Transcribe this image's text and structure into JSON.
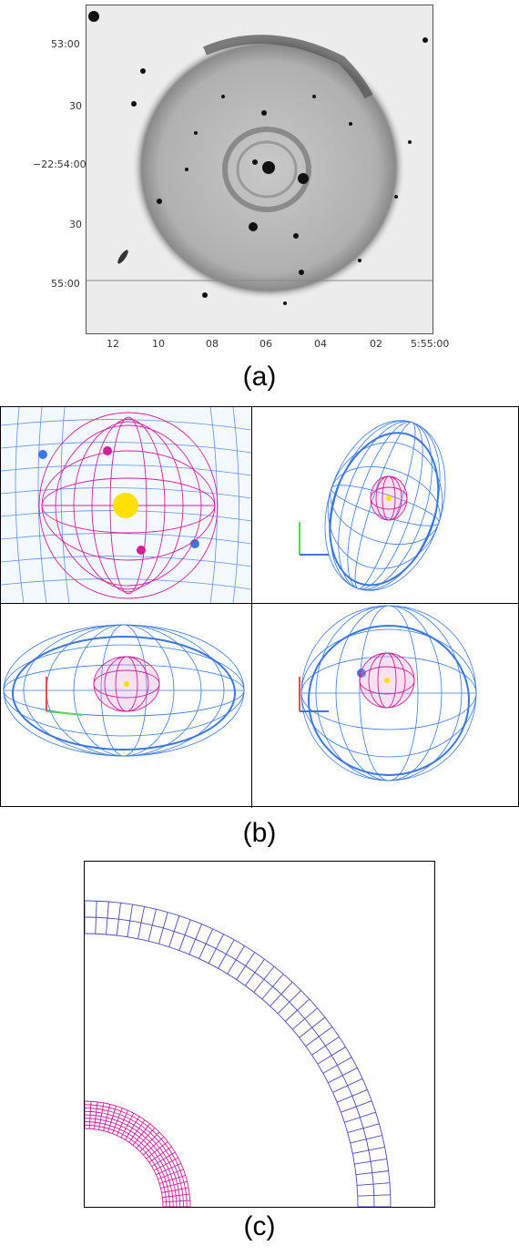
{
  "figure": {
    "panel_a": {
      "y_ticks": [
        "53:00",
        "30",
        "−22:54:00",
        "30",
        "55:00"
      ],
      "x_ticks": [
        "12",
        "10",
        "08",
        "06",
        "04",
        "02",
        "5:55:00"
      ],
      "caption": "(a)"
    },
    "panel_b": {
      "caption": "(b)",
      "colors": {
        "outer_shell": "#3a78e0",
        "inner_shell": "#d0209a",
        "star": "#ffe000"
      }
    },
    "panel_c": {
      "caption": "(c)",
      "colors": {
        "outer_ring": "#4a4ab8",
        "inner_ring": "#d0209a"
      }
    }
  }
}
